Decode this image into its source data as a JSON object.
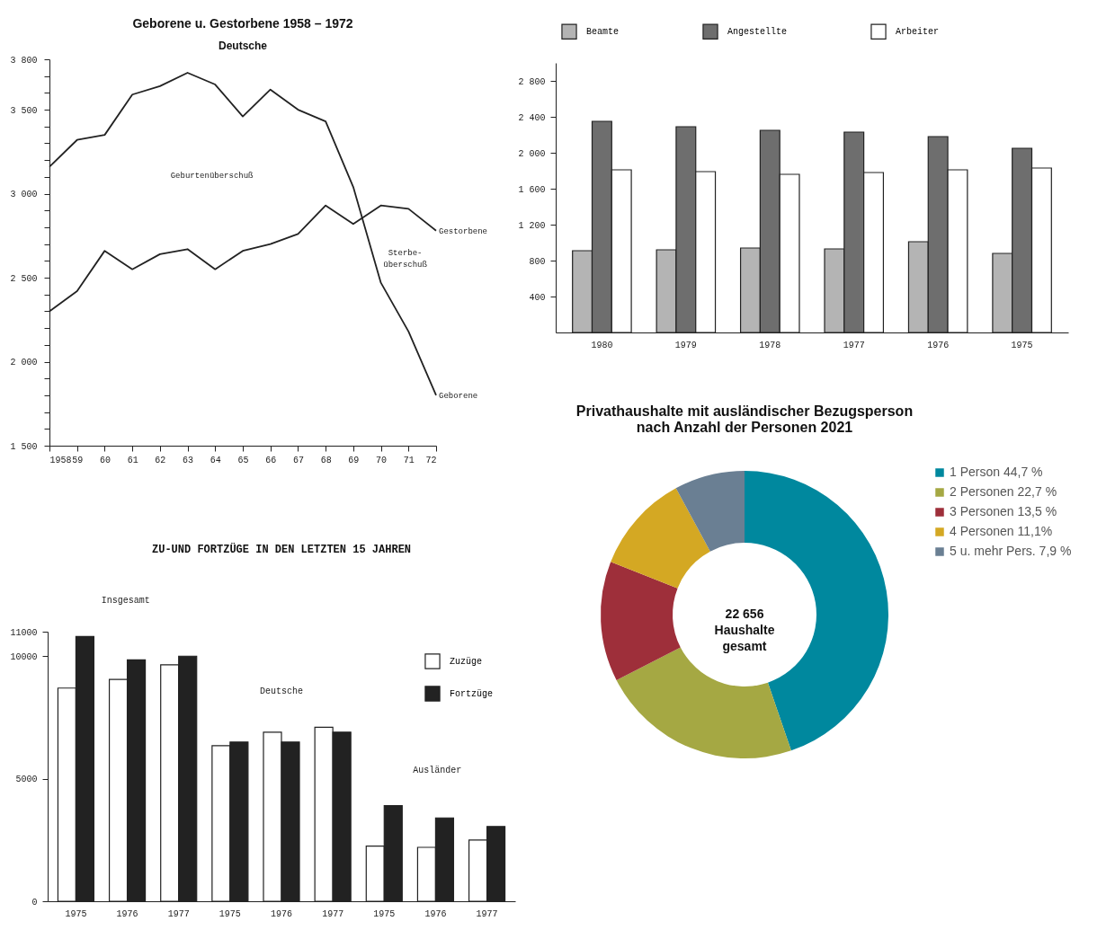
{
  "chart_data": [
    {
      "type": "line",
      "title": "Geborene u. Gestorbene 1958 – 1972",
      "subtitle": "Deutsche",
      "x": [
        1958,
        1959,
        1960,
        1961,
        1962,
        1963,
        1964,
        1965,
        1966,
        1967,
        1968,
        1969,
        1970,
        1971,
        1972
      ],
      "xlim": [
        1958,
        1972
      ],
      "xticks": [
        1958,
        {
          "value": 1959,
          "label": "59"
        },
        {
          "value": 1960,
          "label": "60"
        },
        {
          "value": 1961,
          "label": "61"
        },
        {
          "value": 1962,
          "label": "62"
        },
        {
          "value": 1963,
          "label": "63"
        },
        {
          "value": 1964,
          "label": "64"
        },
        {
          "value": 1965,
          "label": "65"
        },
        {
          "value": 1966,
          "label": "66"
        },
        {
          "value": 1967,
          "label": "67"
        },
        {
          "value": 1968,
          "label": "68"
        },
        {
          "value": 1969,
          "label": "69"
        },
        {
          "value": 1970,
          "label": "70"
        },
        {
          "value": 1971,
          "label": "71"
        },
        {
          "value": 1972,
          "label": "72"
        }
      ],
      "ylim": [
        1500,
        3800
      ],
      "yticks": [
        {
          "value": 1500,
          "label": "1 500"
        },
        {
          "value": 1600,
          "label": null
        },
        {
          "value": 1700,
          "label": null
        },
        {
          "value": 1800,
          "label": null
        },
        {
          "value": 1900,
          "label": null
        },
        {
          "value": 2000,
          "label": "2 000"
        },
        {
          "value": 2100,
          "label": null
        },
        {
          "value": 2200,
          "label": null
        },
        {
          "value": 2300,
          "label": null
        },
        {
          "value": 2400,
          "label": null
        },
        {
          "value": 2500,
          "label": "2 500"
        },
        {
          "value": 2600,
          "label": null
        },
        {
          "value": 2700,
          "label": null
        },
        {
          "value": 2800,
          "label": null
        },
        {
          "value": 2900,
          "label": null
        },
        {
          "value": 3000,
          "label": "3 000"
        },
        {
          "value": 3100,
          "label": null
        },
        {
          "value": 3200,
          "label": null
        },
        {
          "value": 3300,
          "label": null
        },
        {
          "value": 3400,
          "label": null
        },
        {
          "value": 3500,
          "label": "3 500"
        },
        {
          "value": 3600,
          "label": null
        },
        {
          "value": 3700,
          "label": null
        },
        {
          "value": 3800,
          "label": "3 800"
        }
      ],
      "series": [
        {
          "name": "Geborene",
          "color": "#222222",
          "values": [
            3160,
            3320,
            3350,
            3590,
            3640,
            3720,
            3650,
            3460,
            3620,
            3500,
            3430,
            3040,
            2470,
            2180,
            1800
          ]
        },
        {
          "name": "Gestorbene",
          "color": "#222222",
          "values": [
            2300,
            2420,
            2660,
            2550,
            2640,
            2670,
            2550,
            2660,
            2700,
            2760,
            2930,
            2820,
            2930,
            2910,
            2780
          ]
        }
      ],
      "annotations": [
        "Geburtenüberschuß",
        "Sterbe-\nüberschuß"
      ],
      "grid": false,
      "legend": false
    },
    {
      "type": "bar",
      "categories": [
        "1980",
        "1979",
        "1978",
        "1977",
        "1976",
        "1975"
      ],
      "series": [
        {
          "name": "Beamte",
          "color": "#b4b4b4",
          "values": [
            910,
            920,
            940,
            930,
            1010,
            880
          ]
        },
        {
          "name": "Angestellte",
          "color": "#6e6e6e",
          "values": [
            2350,
            2290,
            2250,
            2230,
            2180,
            2050
          ]
        },
        {
          "name": "Arbeiter",
          "color": "#ffffff",
          "values": [
            1810,
            1790,
            1760,
            1780,
            1810,
            1830
          ]
        }
      ],
      "ylim": [
        0,
        3000
      ],
      "yticks": [
        400,
        800,
        {
          "value": 1200,
          "label": "1 200"
        },
        {
          "value": 1600,
          "label": "1 600"
        },
        {
          "value": 2000,
          "label": "2 000"
        },
        {
          "value": 2400,
          "label": "2 400"
        },
        {
          "value": 2800,
          "label": "2 800"
        }
      ],
      "grid": false,
      "legend": "top"
    },
    {
      "type": "bar",
      "title": "ZU-UND FORTZÜGE IN DEN LETZTEN 15 JAHREN",
      "categories": [
        "1975",
        "1976",
        "1977",
        "1975",
        "1976",
        "1977",
        "1975",
        "1976",
        "1977"
      ],
      "series": [
        {
          "name": "Zuzüge",
          "color": "#ffffff",
          "values": [
            8700,
            9050,
            9650,
            6350,
            6900,
            7100,
            2250,
            2200,
            2500
          ]
        },
        {
          "name": "Fortzüge",
          "color": "#222222",
          "values": [
            10800,
            9850,
            10000,
            6500,
            6500,
            6900,
            3900,
            3400,
            3050
          ]
        }
      ],
      "ylim": [
        0,
        11000
      ],
      "yticks": [
        0,
        5000,
        10000,
        11000
      ],
      "annotations": [
        "Insgesamt",
        "Deutsche",
        "Ausländer"
      ],
      "grid": false,
      "legend": "top right"
    },
    {
      "type": "donut",
      "title": "Privathaushalte mit ausländischer Bezugsperson nach Anzahl der Personen 2021",
      "categories": [
        "1 Person",
        "2 Personen",
        "3 Personen",
        "4 Personen",
        "5 u. mehr Pers."
      ],
      "values": [
        44.7,
        22.7,
        13.5,
        11.1,
        7.9
      ],
      "value_labels": [
        "44,7 %",
        "22,7 %",
        "13,5 %",
        "11,1%",
        "7,9 %"
      ],
      "colors": [
        "#00889e",
        "#a5a843",
        "#9e2f3a",
        "#d4a823",
        "#6a7f93"
      ],
      "annotations": [
        "22 656\nHaushalte\ngesamt"
      ],
      "legend": "right"
    }
  ]
}
